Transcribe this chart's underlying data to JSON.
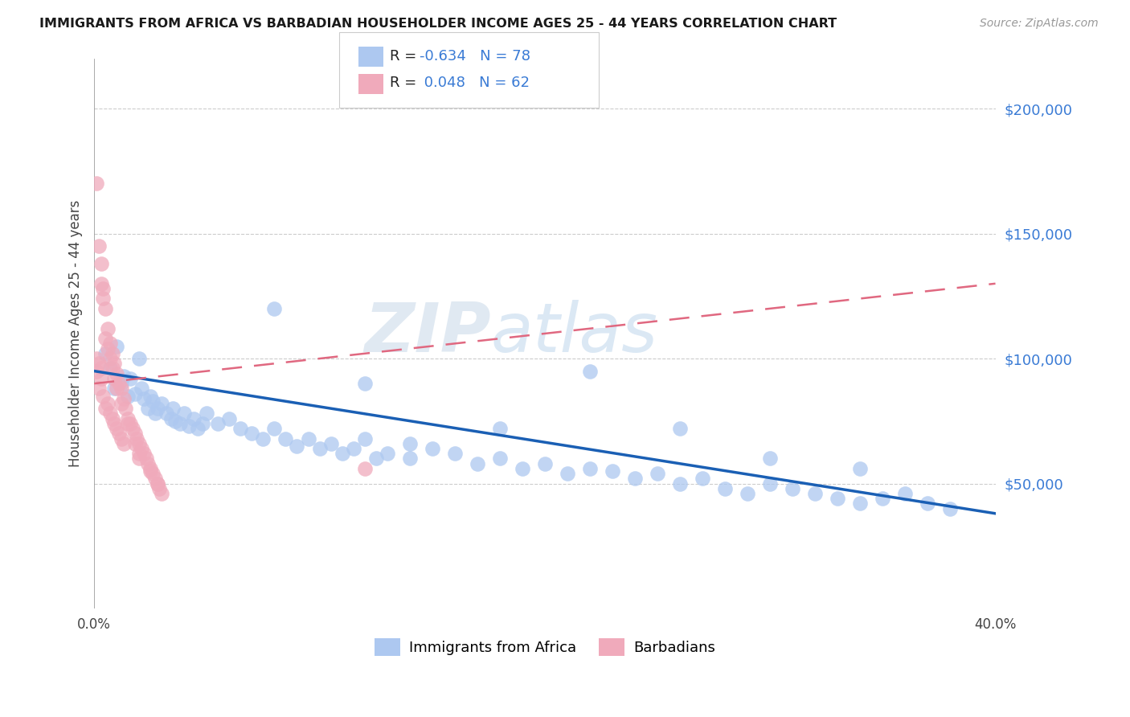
{
  "title": "IMMIGRANTS FROM AFRICA VS BARBADIAN HOUSEHOLDER INCOME AGES 25 - 44 YEARS CORRELATION CHART",
  "source": "Source: ZipAtlas.com",
  "ylabel": "Householder Income Ages 25 - 44 years",
  "legend_label_1": "Immigrants from Africa",
  "legend_label_2": "Barbadians",
  "r1": "-0.634",
  "n1": "78",
  "r2": "0.048",
  "n2": "62",
  "color_blue": "#adc8f0",
  "color_pink": "#f0aabb",
  "line_color_blue": "#1a5fb4",
  "line_color_pink": "#e06880",
  "watermark_zip": "ZIP",
  "watermark_atlas": "atlas",
  "background_color": "#ffffff",
  "xlim": [
    0.0,
    0.4
  ],
  "ylim": [
    0,
    220000
  ],
  "ytick_vals": [
    50000,
    100000,
    150000,
    200000
  ],
  "ytick_labels": [
    "$50,000",
    "$100,000",
    "$150,000",
    "$200,000"
  ],
  "grid_color": "#cccccc",
  "blue_trend_y0": 95000,
  "blue_trend_y1": 38000,
  "pink_trend_y0": 90000,
  "pink_trend_y1": 130000,
  "scatter_blue_x": [
    0.005,
    0.007,
    0.009,
    0.01,
    0.012,
    0.013,
    0.015,
    0.016,
    0.018,
    0.02,
    0.021,
    0.022,
    0.024,
    0.025,
    0.026,
    0.027,
    0.028,
    0.03,
    0.032,
    0.034,
    0.035,
    0.036,
    0.038,
    0.04,
    0.042,
    0.044,
    0.046,
    0.048,
    0.05,
    0.055,
    0.06,
    0.065,
    0.07,
    0.075,
    0.08,
    0.085,
    0.09,
    0.095,
    0.1,
    0.105,
    0.11,
    0.115,
    0.12,
    0.125,
    0.13,
    0.14,
    0.15,
    0.16,
    0.17,
    0.18,
    0.19,
    0.2,
    0.21,
    0.22,
    0.23,
    0.24,
    0.25,
    0.26,
    0.27,
    0.28,
    0.29,
    0.3,
    0.31,
    0.32,
    0.33,
    0.34,
    0.35,
    0.36,
    0.37,
    0.38,
    0.12,
    0.18,
    0.22,
    0.26,
    0.3,
    0.34,
    0.14,
    0.08
  ],
  "scatter_blue_y": [
    102000,
    96000,
    88000,
    105000,
    90000,
    93000,
    85000,
    92000,
    86000,
    100000,
    88000,
    84000,
    80000,
    85000,
    83000,
    78000,
    80000,
    82000,
    78000,
    76000,
    80000,
    75000,
    74000,
    78000,
    73000,
    76000,
    72000,
    74000,
    78000,
    74000,
    76000,
    72000,
    70000,
    68000,
    72000,
    68000,
    65000,
    68000,
    64000,
    66000,
    62000,
    64000,
    68000,
    60000,
    62000,
    60000,
    64000,
    62000,
    58000,
    60000,
    56000,
    58000,
    54000,
    56000,
    55000,
    52000,
    54000,
    50000,
    52000,
    48000,
    46000,
    50000,
    48000,
    46000,
    44000,
    42000,
    44000,
    46000,
    42000,
    40000,
    90000,
    72000,
    95000,
    72000,
    60000,
    56000,
    66000,
    120000
  ],
  "scatter_pink_x": [
    0.001,
    0.001,
    0.002,
    0.002,
    0.003,
    0.003,
    0.004,
    0.004,
    0.005,
    0.005,
    0.006,
    0.006,
    0.007,
    0.007,
    0.008,
    0.008,
    0.009,
    0.009,
    0.01,
    0.01,
    0.011,
    0.011,
    0.012,
    0.012,
    0.013,
    0.013,
    0.014,
    0.015,
    0.016,
    0.017,
    0.018,
    0.019,
    0.02,
    0.021,
    0.022,
    0.023,
    0.024,
    0.025,
    0.026,
    0.027,
    0.028,
    0.029,
    0.03,
    0.003,
    0.004,
    0.005,
    0.006,
    0.007,
    0.008,
    0.009,
    0.01,
    0.012,
    0.015,
    0.018,
    0.02,
    0.025,
    0.028,
    0.001,
    0.002,
    0.003,
    0.12,
    0.02
  ],
  "scatter_pink_y": [
    170000,
    95000,
    145000,
    88000,
    138000,
    92000,
    128000,
    85000,
    120000,
    80000,
    112000,
    82000,
    106000,
    78000,
    102000,
    76000,
    98000,
    74000,
    94000,
    72000,
    90000,
    70000,
    88000,
    68000,
    84000,
    66000,
    80000,
    76000,
    74000,
    72000,
    70000,
    68000,
    66000,
    64000,
    62000,
    60000,
    58000,
    56000,
    54000,
    52000,
    50000,
    48000,
    46000,
    130000,
    124000,
    108000,
    104000,
    100000,
    96000,
    92000,
    88000,
    82000,
    74000,
    66000,
    62000,
    55000,
    50000,
    100000,
    98000,
    96000,
    56000,
    60000
  ]
}
